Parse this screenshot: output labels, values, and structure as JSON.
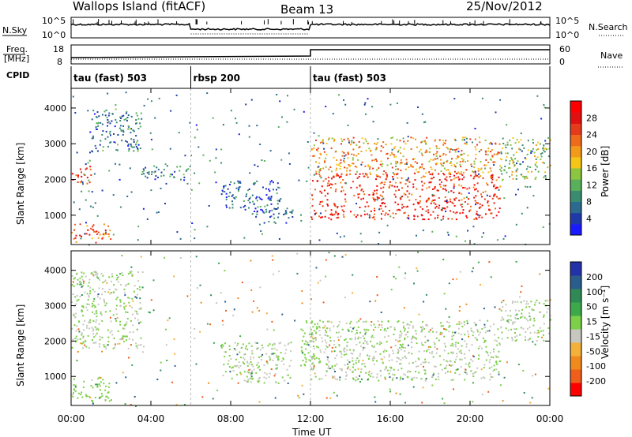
{
  "header": {
    "site": "Wallops Island (fitACF)",
    "beam": "Beam 13",
    "date": "25/Nov/2012"
  },
  "summary_panels": {
    "nsky_label": "N.Sky",
    "nsky_ticks": [
      "10^5",
      "10^0"
    ],
    "nsearch_label": "N.Search",
    "nsearch_ticks": [
      "10^5",
      "10^0"
    ],
    "freq_label_line1": "Freq.",
    "freq_label_line2": "[MHz]",
    "freq_ticks": [
      "18",
      "8"
    ],
    "nave_label": "Nave",
    "nave_ticks": [
      "60",
      "0"
    ],
    "cpid_label": "CPID",
    "cpid_segments": [
      {
        "label": "tau (fast) 503",
        "start_hour": 0
      },
      {
        "label": "rbsp 200",
        "start_hour": 6
      },
      {
        "label": "tau (fast) 503",
        "start_hour": 12
      }
    ]
  },
  "colorbars": {
    "power": {
      "title": "Power [dB]",
      "ticks": [
        "4",
        "8",
        "12",
        "16",
        "20",
        "24",
        "28"
      ],
      "colors": [
        "#1a1aff",
        "#1f3aa8",
        "#2b6b8f",
        "#3a8c70",
        "#58b05a",
        "#8cc540",
        "#f5c518",
        "#f39a1a",
        "#ef6a1c",
        "#e63a1c",
        "#e01010",
        "#ff0000"
      ]
    },
    "velocity": {
      "title": "Velocity [m s⁻¹]",
      "ticks": [
        "200",
        "100",
        "50",
        "15",
        "-15",
        "-50",
        "-100",
        "-200"
      ],
      "colors": [
        "#2332a8",
        "#2a5d8c",
        "#2f8a55",
        "#3ca94a",
        "#7bd047",
        "#c7c7c0",
        "#f3b13b",
        "#f08a1c",
        "#ef5e1b",
        "#ff0000"
      ]
    }
  },
  "chart_data": [
    {
      "type": "heatmap",
      "title": "",
      "xlabel": "Time UT",
      "ylabel": "Slant Range [km]",
      "xlim_hours": [
        0,
        24
      ],
      "ylim_km": [
        180,
        4550
      ],
      "x_ticks": [
        "00:00",
        "04:00",
        "08:00",
        "12:00",
        "16:00",
        "20:00",
        "00:00"
      ],
      "y_ticks": [
        "1000",
        "2000",
        "3000",
        "4000"
      ],
      "quantity": "Power [dB]",
      "regions": [
        {
          "t0": 0.0,
          "t1": 1.0,
          "r0": 1900,
          "r1": 2400,
          "level": 26
        },
        {
          "t0": 1.0,
          "t1": 3.5,
          "r0": 2800,
          "r1": 4000,
          "level": 8
        },
        {
          "t0": 3.5,
          "t1": 6.0,
          "r0": 2000,
          "r1": 2400,
          "level": 8
        },
        {
          "t0": 0.0,
          "t1": 2.0,
          "r0": 250,
          "r1": 800,
          "level": 24
        },
        {
          "t0": 7.5,
          "t1": 10.5,
          "r0": 1200,
          "r1": 2000,
          "level": 6
        },
        {
          "t0": 9.0,
          "t1": 11.5,
          "r0": 800,
          "r1": 1200,
          "level": 6
        },
        {
          "t0": 12.0,
          "t1": 21.5,
          "r0": 900,
          "r1": 1400,
          "level": 28
        },
        {
          "t0": 12.0,
          "t1": 21.5,
          "r0": 1400,
          "r1": 2200,
          "level": 26
        },
        {
          "t0": 12.0,
          "t1": 21.5,
          "r0": 2200,
          "r1": 3200,
          "level": 20
        },
        {
          "t0": 21.5,
          "t1": 24.0,
          "r0": 2000,
          "r1": 3200,
          "level": 14
        }
      ]
    },
    {
      "type": "heatmap",
      "title": "",
      "xlabel": "Time UT",
      "ylabel": "Slant Range [km]",
      "xlim_hours": [
        0,
        24
      ],
      "ylim_km": [
        180,
        4550
      ],
      "x_ticks": [
        "00:00",
        "04:00",
        "08:00",
        "12:00",
        "16:00",
        "20:00",
        "00:00"
      ],
      "y_ticks": [
        "1000",
        "2000",
        "3000",
        "4000"
      ],
      "quantity": "Velocity [m s⁻¹]",
      "regions": [
        {
          "t0": 0.0,
          "t1": 3.5,
          "r0": 1800,
          "r1": 4000,
          "level": 0
        },
        {
          "t0": 0.0,
          "t1": 2.0,
          "r0": 300,
          "r1": 1000,
          "level": 30
        },
        {
          "t0": 7.5,
          "t1": 11.0,
          "r0": 800,
          "r1": 2000,
          "level": 0
        },
        {
          "t0": 11.5,
          "t1": 12.3,
          "r0": 1200,
          "r1": 2600,
          "level": 40
        },
        {
          "t0": 12.0,
          "t1": 21.5,
          "r0": 900,
          "r1": 2600,
          "level": 0
        },
        {
          "t0": 21.5,
          "t1": 24.0,
          "r0": 2000,
          "r1": 3200,
          "level": 0
        }
      ]
    }
  ]
}
